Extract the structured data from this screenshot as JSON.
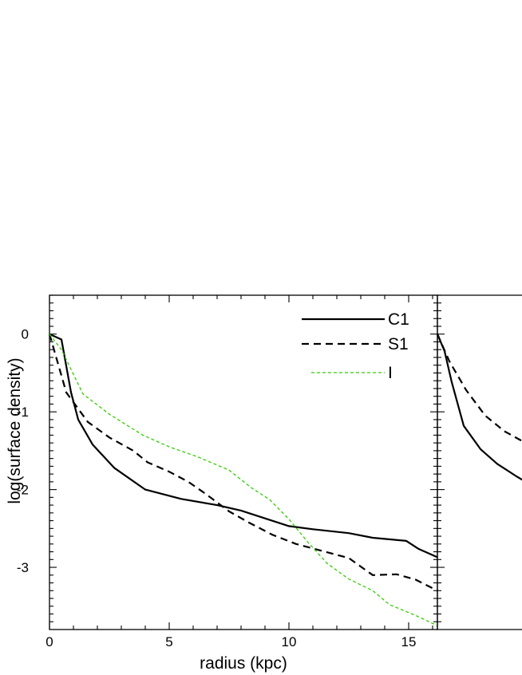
{
  "chart_data": [
    {
      "type": "line",
      "title": "",
      "xlabel": "radius (kpc)",
      "ylabel": "log(surface density)",
      "xlim": [
        0,
        16.2
      ],
      "ylim": [
        -3.8,
        0.5
      ],
      "xticks": [
        0,
        5,
        10,
        15
      ],
      "xtick_labels": [
        "0",
        "5",
        "10",
        "15"
      ],
      "yticks": [
        0,
        -1,
        -2,
        -3
      ],
      "ytick_labels": [
        "0",
        "-1",
        "-2",
        "-3"
      ],
      "grid": false,
      "legend": "top-right",
      "series": [
        {
          "name": "C1",
          "color": "#000000",
          "style": "solid",
          "x": [
            0,
            0.5,
            0.9,
            1.2,
            1.8,
            2.7,
            4.0,
            5.5,
            7.0,
            8.0,
            9.0,
            10.0,
            11.0,
            12.5,
            13.5,
            14.9,
            15.4,
            16.2
          ],
          "y": [
            0,
            -0.07,
            -0.75,
            -1.1,
            -1.42,
            -1.72,
            -2.0,
            -2.12,
            -2.2,
            -2.27,
            -2.37,
            -2.47,
            -2.51,
            -2.56,
            -2.62,
            -2.66,
            -2.76,
            -2.87
          ]
        },
        {
          "name": "S1",
          "color": "#000000",
          "style": "dashed",
          "x": [
            0,
            0.3,
            0.7,
            1.6,
            2.5,
            3.5,
            4.1,
            5.0,
            5.8,
            6.5,
            7.5,
            8.3,
            9.3,
            10.3,
            11.4,
            12.5,
            13.5,
            14.5,
            15.3,
            16.2
          ],
          "y": [
            0,
            -0.32,
            -0.75,
            -1.13,
            -1.33,
            -1.5,
            -1.65,
            -1.77,
            -1.9,
            -2.05,
            -2.28,
            -2.42,
            -2.58,
            -2.7,
            -2.79,
            -2.88,
            -3.1,
            -3.09,
            -3.16,
            -3.3
          ]
        },
        {
          "name": "I",
          "color": "#33cc00",
          "style": "dashed",
          "x": [
            0,
            0.5,
            1.4,
            2.5,
            3.9,
            5.0,
            6.2,
            7.5,
            8.4,
            9.2,
            10.0,
            10.8,
            11.6,
            12.5,
            13.5,
            14.2,
            15.3,
            16.2
          ],
          "y": [
            0,
            -0.2,
            -0.77,
            -1.03,
            -1.3,
            -1.45,
            -1.58,
            -1.75,
            -1.97,
            -2.13,
            -2.38,
            -2.68,
            -2.95,
            -3.15,
            -3.3,
            -3.48,
            -3.62,
            -3.75
          ]
        }
      ]
    },
    {
      "type": "line",
      "title": "",
      "xlabel": "",
      "ylabel": "",
      "partially_visible": true,
      "series": [
        {
          "color": "#000000",
          "style": "solid",
          "x": [
            0,
            0.3,
            0.6,
            1.1,
            1.8,
            2.5,
            3.3,
            3.8
          ],
          "y": [
            0,
            -0.22,
            -0.62,
            -1.18,
            -1.48,
            -1.67,
            -1.83,
            -1.92
          ]
        },
        {
          "color": "#000000",
          "style": "dashed",
          "x": [
            0,
            0.5,
            1.2,
            2.0,
            2.8,
            3.8
          ],
          "y": [
            0,
            -0.35,
            -0.72,
            -1.05,
            -1.25,
            -1.42
          ]
        }
      ]
    }
  ]
}
